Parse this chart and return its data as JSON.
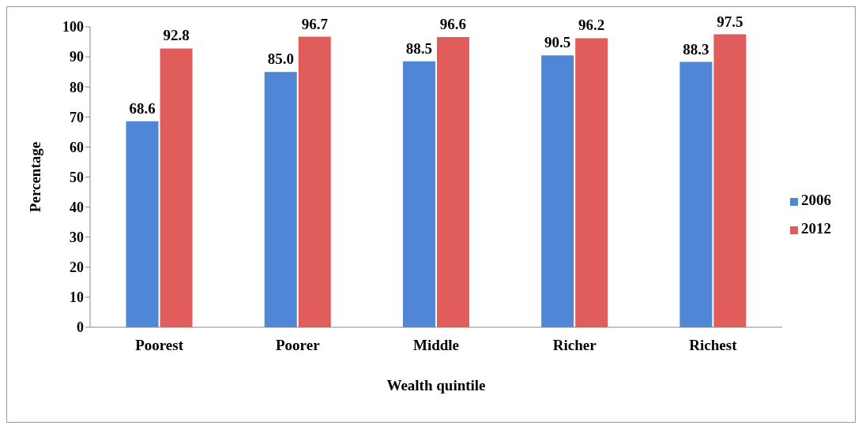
{
  "chart_data": {
    "type": "bar",
    "xlabel": "Wealth quintile",
    "ylabel": "Percentage",
    "categories": [
      "Poorest",
      "Poorer",
      "Middle",
      "Richer",
      "Richest"
    ],
    "series": [
      {
        "name": "2006",
        "color": "#4f86d6",
        "values": [
          68.6,
          85.0,
          88.5,
          90.5,
          88.3
        ],
        "value_labels": [
          "68.6",
          "85.0",
          "88.5",
          "90.5",
          "88.3"
        ]
      },
      {
        "name": "2012",
        "color": "#e05d5b",
        "values": [
          92.8,
          96.7,
          96.6,
          96.2,
          97.5
        ],
        "value_labels": [
          "92.8",
          "96.7",
          "96.6",
          "96.2",
          "97.5"
        ]
      }
    ],
    "ylim": [
      0,
      100
    ],
    "yticks": [
      0,
      10,
      20,
      30,
      40,
      50,
      60,
      70,
      80,
      90,
      100
    ],
    "legend": "right"
  }
}
